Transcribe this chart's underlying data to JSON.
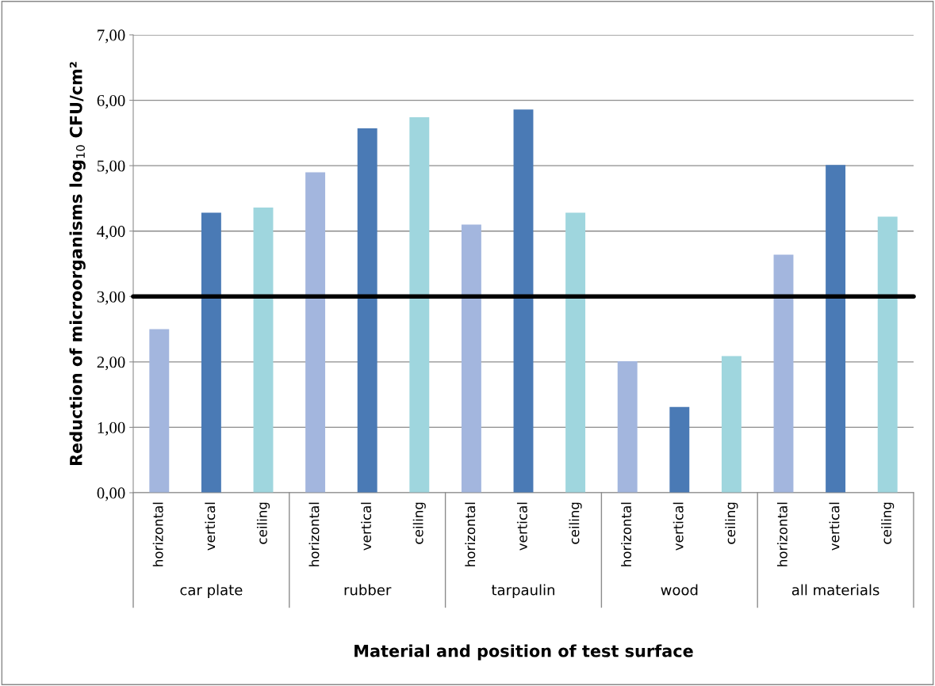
{
  "chart_data": {
    "type": "bar",
    "ylabel": "Reduction of microorganisms log$_{10}$ CFU/cm²",
    "xlabel": "Material and position of test surface",
    "categories": [
      "horizontal",
      "vertical",
      "ceiling",
      "horizontal",
      "vertical",
      "ceiling",
      "horizontal",
      "vertical",
      "ceiling",
      "horizontal",
      "vertical",
      "ceiling",
      "horizontal",
      "vertical",
      "ceiling"
    ],
    "values": [
      2.5,
      4.28,
      4.36,
      4.9,
      5.57,
      5.74,
      4.1,
      5.86,
      4.28,
      2.01,
      1.31,
      2.09,
      3.64,
      5.01,
      4.22
    ],
    "colors": [
      "#a3b6de",
      "#4a7ab5",
      "#9fd6de",
      "#a3b6de",
      "#4a7ab5",
      "#9fd6de",
      "#a3b6de",
      "#4a7ab5",
      "#9fd6de",
      "#a3b6de",
      "#4a7ab5",
      "#9fd6de",
      "#a3b6de",
      "#4a7ab5",
      "#9fd6de"
    ],
    "annotations": [
      "car plate",
      "rubber",
      "tarpaulin",
      "wood",
      "all materials"
    ],
    "ylim": [
      0,
      7
    ],
    "yticks": [
      {
        "value": 0,
        "label": "0,00"
      },
      {
        "value": 1,
        "label": "1,00"
      },
      {
        "value": 2,
        "label": "2,00"
      },
      {
        "value": 3,
        "label": "3,00"
      },
      {
        "value": 4,
        "label": "4,00"
      },
      {
        "value": 5,
        "label": "5,00"
      },
      {
        "value": 6,
        "label": "6,00"
      },
      {
        "value": 7,
        "label": "7,00"
      }
    ],
    "ref_lines": [
      {
        "axis": "y",
        "value": 3,
        "color": "#000000"
      }
    ],
    "grid": "y"
  }
}
